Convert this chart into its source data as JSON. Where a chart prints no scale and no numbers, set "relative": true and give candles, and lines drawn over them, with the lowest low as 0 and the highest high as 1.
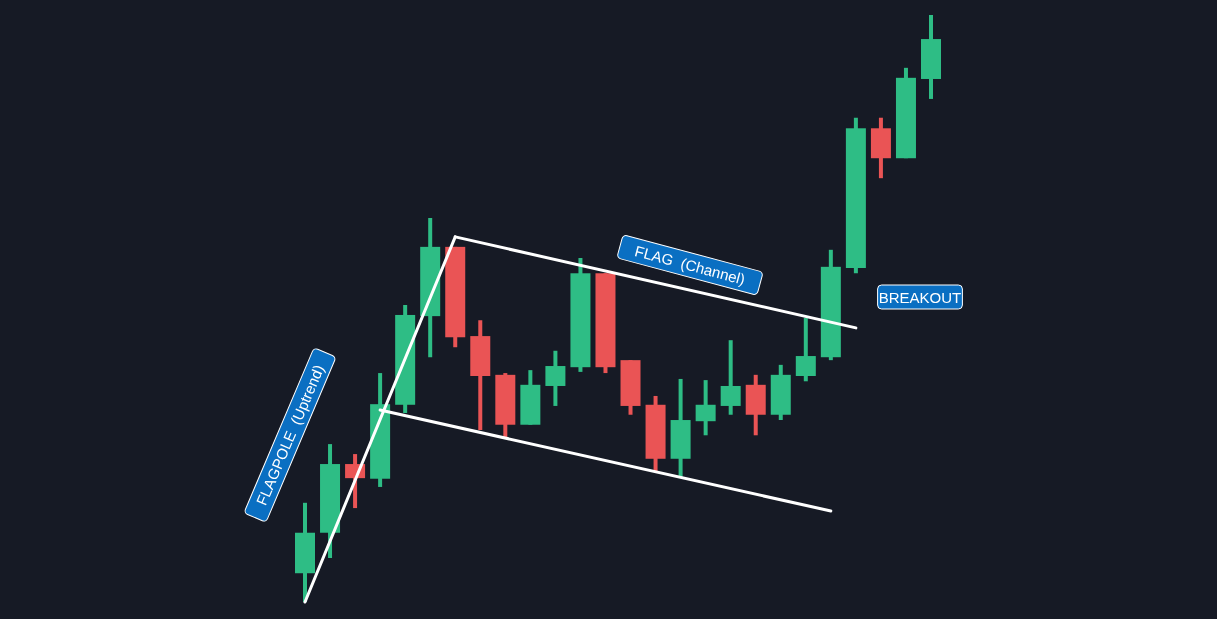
{
  "chart_data": {
    "type": "candlestick",
    "relative": true,
    "categories": [
      null,
      null,
      null,
      null,
      null,
      null,
      null,
      null,
      null,
      null,
      null,
      null,
      null,
      null,
      null,
      null,
      null,
      null,
      null,
      null,
      null,
      null,
      null,
      null,
      null,
      null
    ],
    "ohlc": [
      [
        0.049,
        0.169,
        0,
        0.118
      ],
      [
        0.118,
        0.269,
        0.075,
        0.235
      ],
      [
        0.235,
        0.252,
        0.16,
        0.211
      ],
      [
        0.21,
        0.39,
        0.196,
        0.337
      ],
      [
        0.336,
        0.506,
        0.322,
        0.489
      ],
      [
        0.487,
        0.654,
        0.417,
        0.605
      ],
      [
        0.605,
        0.605,
        0.434,
        0.451
      ],
      [
        0.453,
        0.48,
        0.293,
        0.385
      ],
      [
        0.387,
        0.39,
        0.281,
        0.302
      ],
      [
        0.302,
        0.395,
        0.302,
        0.37
      ],
      [
        0.368,
        0.428,
        0.334,
        0.402
      ],
      [
        0.4,
        0.586,
        0.392,
        0.56
      ],
      [
        0.56,
        0.56,
        0.39,
        0.4
      ],
      [
        0.412,
        0.412,
        0.319,
        0.334
      ],
      [
        0.336,
        0.351,
        0.223,
        0.244
      ],
      [
        0.244,
        0.38,
        0.213,
        0.31
      ],
      [
        0.308,
        0.378,
        0.284,
        0.336
      ],
      [
        0.334,
        0.446,
        0.319,
        0.368
      ],
      [
        0.37,
        0.387,
        0.284,
        0.319
      ],
      [
        0.319,
        0.404,
        0.31,
        0.387
      ],
      [
        0.385,
        0.484,
        0.376,
        0.419
      ],
      [
        0.417,
        0.6,
        0.412,
        0.571
      ],
      [
        0.569,
        0.825,
        0.56,
        0.807
      ],
      [
        0.807,
        0.825,
        0.722,
        0.756
      ],
      [
        0.756,
        0.91,
        0.756,
        0.893
      ],
      [
        0.891,
        1,
        0.857,
        0.959
      ]
    ],
    "colors": [
      "#2ebd85",
      "#2ebd85",
      "#ea5455",
      "#2ebd85",
      "#2ebd85",
      "#2ebd85",
      "#ea5455",
      "#ea5455",
      "#ea5455",
      "#2ebd85",
      "#2ebd85",
      "#2ebd85",
      "#ea5455",
      "#ea5455",
      "#ea5455",
      "#2ebd85",
      "#2ebd85",
      "#2ebd85",
      "#ea5455",
      "#2ebd85",
      "#2ebd85",
      "#2ebd85",
      "#2ebd85",
      "#ea5455",
      "#2ebd85",
      "#2ebd85"
    ],
    "series": [
      {
        "type": "line",
        "color": "#ffffff",
        "values": [
          0,
          null,
          null,
          null,
          null,
          null,
          0.622,
          null,
          null,
          null,
          null,
          null,
          null,
          null,
          null,
          null,
          null,
          null,
          null,
          null,
          null,
          null,
          null,
          null,
          null,
          null
        ]
      },
      {
        "type": "line",
        "color": "#ffffff",
        "values": [
          null,
          null,
          null,
          null,
          null,
          null,
          0.622,
          null,
          null,
          null,
          null,
          null,
          null,
          null,
          null,
          null,
          null,
          null,
          null,
          null,
          null,
          null,
          0.467,
          null,
          null,
          null
        ]
      },
      {
        "type": "line",
        "color": "#ffffff",
        "values": [
          null,
          null,
          null,
          0.327,
          null,
          null,
          null,
          null,
          null,
          null,
          null,
          null,
          null,
          null,
          null,
          null,
          null,
          null,
          null,
          null,
          null,
          0.155,
          null,
          null,
          null,
          null
        ]
      }
    ],
    "annotations": [
      "FLAGPOLE  (Uptrend)",
      "FLAG  (Channel)",
      "BREAKOUT"
    ]
  }
}
